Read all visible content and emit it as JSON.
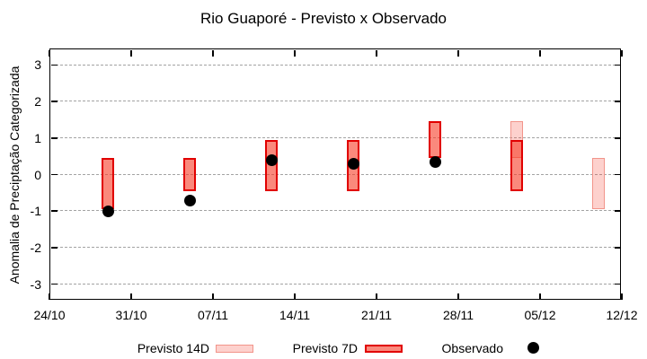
{
  "title": "Rio Guaporé - Previsto x Observado",
  "y_axis_label": "Anomalia de Preciptação Categorizada",
  "legend": {
    "items": [
      {
        "label": "Previsto 14D",
        "swatch": "light-pink-box"
      },
      {
        "label": "Previsto 7D",
        "swatch": "red-box"
      },
      {
        "label": "Observado",
        "swatch": "black-dot"
      }
    ]
  },
  "colors": {
    "forecast_base": "rgba(247,58,37,0.6)",
    "forecast_14d_fill": "rgba(247,58,37,0.23)",
    "forecast_14d_border": "#f2948a",
    "forecast_7d_fill": "rgba(247,58,37,0.6)",
    "forecast_7d_border": "#e10000",
    "observed_dot": "#000000",
    "grid": "#a3a3a3",
    "axis": "#000000"
  },
  "chart_data": {
    "type": "bar",
    "title": "Rio Guaporé - Previsto x Observado",
    "xlabel": "",
    "ylabel": "Anomalia de Preciptação Categorizada",
    "ylim": [
      -3.45,
      3.45
    ],
    "y_ticks": [
      -3,
      -2,
      -1,
      0,
      1,
      2,
      3
    ],
    "grid": "horizontal dashed at integer y values",
    "legend_position": "bottom",
    "x_axis": {
      "tick_labels": [
        "24/10",
        "31/10",
        "07/11",
        "14/11",
        "21/11",
        "28/11",
        "05/12",
        "12/12"
      ],
      "tick_days": [
        0,
        7,
        14,
        21,
        28,
        35,
        42,
        49
      ],
      "total_days": 49
    },
    "series": [
      {
        "name": "Previsto 14D",
        "type": "range_bar",
        "fill": "rgba(247,58,37,0.23)",
        "border": "#f2948a",
        "points": [
          {
            "date": "03/12",
            "day": 40,
            "low": 0.45,
            "high": 1.45
          },
          {
            "date": "10/12",
            "day": 47,
            "low": -0.95,
            "high": 0.45
          }
        ]
      },
      {
        "name": "Previsto 7D",
        "type": "range_bar",
        "fill": "rgba(247,58,37,0.6)",
        "border": "#e10000",
        "points": [
          {
            "date": "29/10",
            "day": 5,
            "low": -0.95,
            "high": 0.45
          },
          {
            "date": "05/11",
            "day": 12,
            "low": -0.45,
            "high": 0.45
          },
          {
            "date": "12/11",
            "day": 19,
            "low": -0.45,
            "high": 0.95
          },
          {
            "date": "19/11",
            "day": 26,
            "low": -0.45,
            "high": 0.95
          },
          {
            "date": "26/11",
            "day": 33,
            "low": 0.45,
            "high": 1.45
          },
          {
            "date": "03/12",
            "day": 40,
            "low": -0.45,
            "high": 0.95
          }
        ]
      },
      {
        "name": "Observado",
        "type": "scatter",
        "color": "#000000",
        "points": [
          {
            "date": "29/10",
            "day": 5,
            "value": -1.0
          },
          {
            "date": "05/11",
            "day": 12,
            "value": -0.7
          },
          {
            "date": "12/11",
            "day": 19,
            "value": 0.4
          },
          {
            "date": "19/11",
            "day": 26,
            "value": 0.3
          },
          {
            "date": "26/11",
            "day": 33,
            "value": 0.35
          }
        ]
      }
    ]
  }
}
